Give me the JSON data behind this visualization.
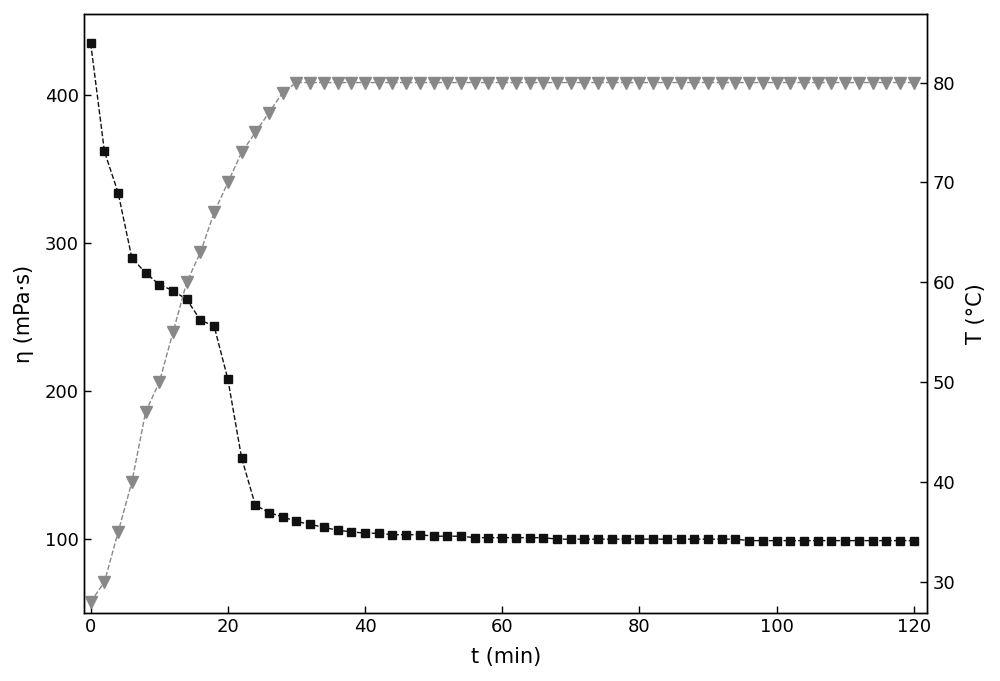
{
  "eta_x": [
    0,
    2,
    4,
    6,
    8,
    10,
    12,
    14,
    16,
    18,
    20,
    22,
    24,
    26,
    28,
    30,
    32,
    34,
    36,
    38,
    40,
    42,
    44,
    46,
    48,
    50,
    52,
    54,
    56,
    58,
    60,
    62,
    64,
    66,
    68,
    70,
    72,
    74,
    76,
    78,
    80,
    82,
    84,
    86,
    88,
    90,
    92,
    94,
    96,
    98,
    100,
    102,
    104,
    106,
    108,
    110,
    112,
    114,
    116,
    118,
    120
  ],
  "eta_y": [
    435,
    362,
    334,
    290,
    280,
    272,
    268,
    262,
    248,
    244,
    208,
    155,
    123,
    118,
    115,
    112,
    110,
    108,
    106,
    105,
    104,
    104,
    103,
    103,
    103,
    102,
    102,
    102,
    101,
    101,
    101,
    101,
    101,
    101,
    100,
    100,
    100,
    100,
    100,
    100,
    100,
    100,
    100,
    100,
    100,
    100,
    100,
    100,
    99,
    99,
    99,
    99,
    99,
    99,
    99,
    99,
    99,
    99,
    99,
    99,
    99
  ],
  "temp_x": [
    0,
    2,
    4,
    6,
    8,
    10,
    12,
    14,
    16,
    18,
    20,
    22,
    24,
    26,
    28,
    30,
    32,
    34,
    36,
    38,
    40,
    42,
    44,
    46,
    48,
    50,
    52,
    54,
    56,
    58,
    60,
    62,
    64,
    66,
    68,
    70,
    72,
    74,
    76,
    78,
    80,
    82,
    84,
    86,
    88,
    90,
    92,
    94,
    96,
    98,
    100,
    102,
    104,
    106,
    108,
    110,
    112,
    114,
    116,
    118,
    120
  ],
  "temp_y": [
    28,
    30,
    35,
    40,
    47,
    50,
    55,
    60,
    63,
    67,
    70,
    73,
    75,
    77,
    79,
    80,
    80,
    80,
    80,
    80,
    80,
    80,
    80,
    80,
    80,
    80,
    80,
    80,
    80,
    80,
    80,
    80,
    80,
    80,
    80,
    80,
    80,
    80,
    80,
    80,
    80,
    80,
    80,
    80,
    80,
    80,
    80,
    80,
    80,
    80,
    80,
    80,
    80,
    80,
    80,
    80,
    80,
    80,
    80,
    80,
    80
  ],
  "eta_color": "#111111",
  "temp_color": "#888888",
  "xlabel": "t (min)",
  "ylabel_left": "η (mPa·s)",
  "ylabel_right": "T (°C)",
  "xlim": [
    -1,
    122
  ],
  "ylim_left": [
    50,
    455
  ],
  "ylim_right": [
    26.875,
    86.875
  ],
  "yticks_left": [
    100,
    200,
    300,
    400
  ],
  "yticks_right": [
    30,
    40,
    50,
    60,
    70,
    80
  ],
  "xticks": [
    0,
    20,
    40,
    60,
    80,
    100,
    120
  ],
  "figsize": [
    10.0,
    6.81
  ],
  "dpi": 100
}
